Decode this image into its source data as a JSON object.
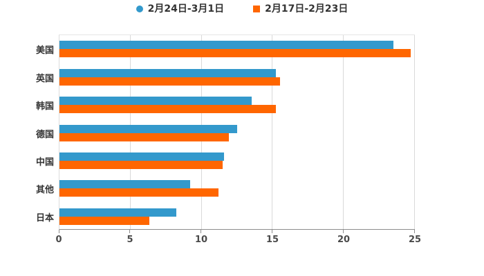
{
  "chart_data": {
    "type": "bar",
    "orientation": "horizontal",
    "title": "",
    "xlabel": "",
    "ylabel": "",
    "categories": [
      "美国",
      "英国",
      "韩国",
      "德国",
      "中国",
      "其他",
      "日本"
    ],
    "series": [
      {
        "name": "2月24日-3月1日",
        "color": "#3399cc",
        "marker": "circle",
        "values": [
          23.5,
          15.2,
          13.5,
          12.5,
          11.6,
          9.2,
          8.2
        ]
      },
      {
        "name": "2月17日-2月23日",
        "color": "#ff6600",
        "marker": "square",
        "values": [
          24.7,
          15.5,
          15.2,
          11.9,
          11.5,
          11.2,
          6.3
        ]
      }
    ],
    "x_ticks": [
      0,
      5,
      10,
      15,
      20,
      25
    ],
    "xlim": [
      0,
      25
    ],
    "grid": true,
    "legend_position": "top",
    "background": "#ffffff",
    "grid_color": "#d9d9d9",
    "axis_color": "#8c8c8c",
    "text_color": "#333333"
  }
}
